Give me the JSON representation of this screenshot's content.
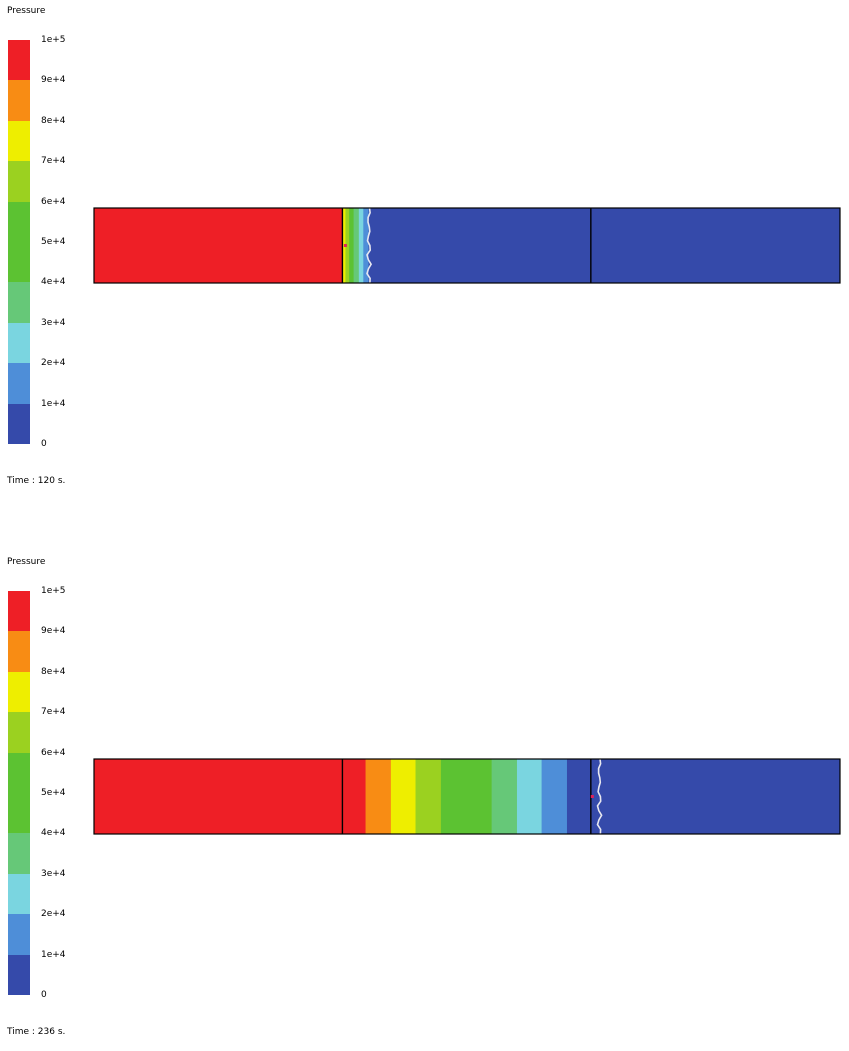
{
  "chart_data": [
    {
      "type": "heatmap",
      "title": "Pressure",
      "colorbar": {
        "ticks": [
          "1e+5",
          "9e+4",
          "8e+4",
          "7e+4",
          "6e+4",
          "5e+4",
          "4e+4",
          "3e+4",
          "2e+4",
          "1e+4",
          "0"
        ],
        "tick_values": [
          100000,
          90000,
          80000,
          70000,
          60000,
          50000,
          40000,
          30000,
          20000,
          10000,
          0
        ],
        "levels": [
          {
            "range": [
              90000,
              100000
            ],
            "color": "#ee1f26"
          },
          {
            "range": [
              80000,
              90000
            ],
            "color": "#f88c14"
          },
          {
            "range": [
              70000,
              80000
            ],
            "color": "#eeee00"
          },
          {
            "range": [
              60000,
              70000
            ],
            "color": "#9bd120"
          },
          {
            "range": [
              50000,
              60000
            ],
            "color": "#5cc232"
          },
          {
            "range": [
              40000,
              50000
            ],
            "color": "#5cc232"
          },
          {
            "range": [
              30000,
              40000
            ],
            "color": "#66c878"
          },
          {
            "range": [
              20000,
              30000
            ],
            "color": "#7ad5e0"
          },
          {
            "range": [
              10000,
              20000
            ],
            "color": "#4e8ed8"
          },
          {
            "range": [
              0,
              10000
            ],
            "color": "#354aaa"
          }
        ]
      },
      "time_label": "Time : 120 s.",
      "time_s": 120,
      "domain_split": [
        0.333,
        0.666
      ],
      "bands": [
        {
          "start": 0.0,
          "end": 0.333,
          "color": "#ee1f26"
        },
        {
          "start": 0.333,
          "end": 0.337,
          "color": "#eeee00"
        },
        {
          "start": 0.337,
          "end": 0.342,
          "color": "#9bd120"
        },
        {
          "start": 0.342,
          "end": 0.348,
          "color": "#5cc232"
        },
        {
          "start": 0.348,
          "end": 0.355,
          "color": "#66c878"
        },
        {
          "start": 0.355,
          "end": 0.361,
          "color": "#7ad5e0"
        },
        {
          "start": 0.361,
          "end": 0.368,
          "color": "#4e8ed8"
        },
        {
          "start": 0.368,
          "end": 1.0,
          "color": "#354aaa"
        }
      ],
      "front_position": 0.368,
      "probe_position": 0.337
    },
    {
      "type": "heatmap",
      "title": "Pressure",
      "colorbar": {
        "ticks": [
          "1e+5",
          "9e+4",
          "8e+4",
          "7e+4",
          "6e+4",
          "5e+4",
          "4e+4",
          "3e+4",
          "2e+4",
          "1e+4",
          "0"
        ],
        "tick_values": [
          100000,
          90000,
          80000,
          70000,
          60000,
          50000,
          40000,
          30000,
          20000,
          10000,
          0
        ],
        "levels": [
          {
            "range": [
              90000,
              100000
            ],
            "color": "#ee1f26"
          },
          {
            "range": [
              80000,
              90000
            ],
            "color": "#f88c14"
          },
          {
            "range": [
              70000,
              80000
            ],
            "color": "#eeee00"
          },
          {
            "range": [
              60000,
              70000
            ],
            "color": "#9bd120"
          },
          {
            "range": [
              50000,
              60000
            ],
            "color": "#5cc232"
          },
          {
            "range": [
              40000,
              50000
            ],
            "color": "#5cc232"
          },
          {
            "range": [
              30000,
              40000
            ],
            "color": "#66c878"
          },
          {
            "range": [
              20000,
              30000
            ],
            "color": "#7ad5e0"
          },
          {
            "range": [
              10000,
              20000
            ],
            "color": "#4e8ed8"
          },
          {
            "range": [
              0,
              10000
            ],
            "color": "#354aaa"
          }
        ]
      },
      "time_label": "Time : 236 s.",
      "time_s": 236,
      "domain_split": [
        0.333,
        0.666
      ],
      "bands": [
        {
          "start": 0.0,
          "end": 0.364,
          "color": "#ee1f26"
        },
        {
          "start": 0.364,
          "end": 0.398,
          "color": "#f88c14"
        },
        {
          "start": 0.398,
          "end": 0.431,
          "color": "#eeee00"
        },
        {
          "start": 0.431,
          "end": 0.465,
          "color": "#9bd120"
        },
        {
          "start": 0.465,
          "end": 0.533,
          "color": "#5cc232"
        },
        {
          "start": 0.533,
          "end": 0.567,
          "color": "#66c878"
        },
        {
          "start": 0.567,
          "end": 0.6,
          "color": "#7ad5e0"
        },
        {
          "start": 0.6,
          "end": 0.634,
          "color": "#4e8ed8"
        },
        {
          "start": 0.634,
          "end": 1.0,
          "color": "#354aaa"
        }
      ],
      "front_position": 0.677,
      "probe_position": 0.668
    }
  ]
}
